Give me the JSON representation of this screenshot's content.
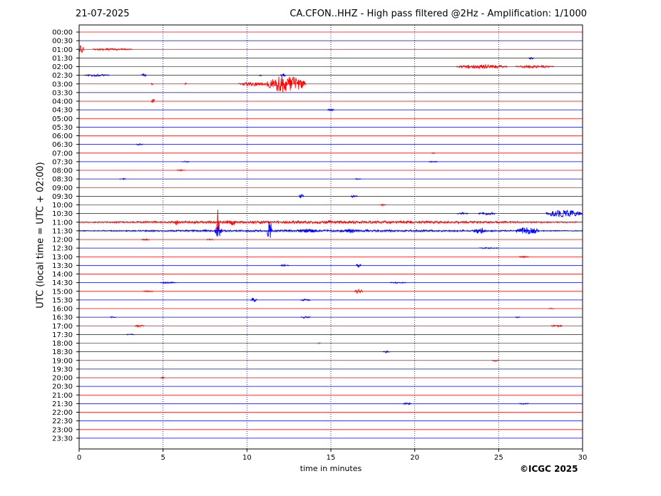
{
  "header": {
    "date": "21-07-2025",
    "title": "CA.CFON..HHZ - High pass filtered @2Hz - Amplification: 1/1000"
  },
  "footer": {
    "copyright": "©ICGC 2025"
  },
  "colors": {
    "trace_a": "#ff0000",
    "trace_b": "#0000ff",
    "vgrid": "#000080",
    "axis": "#000000"
  },
  "chart_data": {
    "type": "line",
    "xlabel": "time in minutes",
    "ylabel": "UTC (local time = UTC + 02:00)",
    "xlim": [
      0,
      30
    ],
    "xticks": [
      0,
      5,
      10,
      15,
      20,
      25,
      30
    ],
    "vertical_grid": "dotted, every 5 minutes",
    "row_colors_alternate": [
      "red",
      "blue"
    ],
    "row_labels": [
      "00:00",
      "00:30",
      "01:00",
      "01:30",
      "02:00",
      "02:30",
      "03:00",
      "03:30",
      "04:00",
      "04:30",
      "05:00",
      "05:30",
      "06:00",
      "06:30",
      "07:00",
      "07:30",
      "08:00",
      "08:30",
      "09:00",
      "09:30",
      "10:00",
      "10:30",
      "11:00",
      "11:30",
      "12:00",
      "12:30",
      "13:00",
      "13:30",
      "14:00",
      "14:30",
      "15:00",
      "15:30",
      "16:00",
      "16:30",
      "17:00",
      "17:30",
      "18:00",
      "18:30",
      "19:00",
      "19:30",
      "20:00",
      "20:30",
      "21:00",
      "21:30",
      "22:00",
      "22:30",
      "23:00",
      "23:30"
    ],
    "events": [
      {
        "row": "01:00",
        "start": 0.0,
        "end": 0.3,
        "amplitude": 6
      },
      {
        "row": "01:00",
        "start": 0.8,
        "end": 3.2,
        "amplitude": 1.5
      },
      {
        "row": "01:30",
        "start": 26.8,
        "end": 27.1,
        "amplitude": 2
      },
      {
        "row": "02:00",
        "start": 22.5,
        "end": 25.5,
        "amplitude": 3
      },
      {
        "row": "02:00",
        "start": 26.0,
        "end": 28.3,
        "amplitude": 2
      },
      {
        "row": "02:30",
        "start": 0.3,
        "end": 1.8,
        "amplitude": 1.5
      },
      {
        "row": "02:30",
        "start": 3.7,
        "end": 4.0,
        "amplitude": 2
      },
      {
        "row": "02:30",
        "start": 10.7,
        "end": 10.9,
        "amplitude": 1
      },
      {
        "row": "02:30",
        "start": 12.0,
        "end": 12.3,
        "amplitude": 3
      },
      {
        "row": "03:00",
        "start": 9.5,
        "end": 11.2,
        "amplitude": 3
      },
      {
        "row": "03:00",
        "start": 11.2,
        "end": 13.5,
        "amplitude": 12
      },
      {
        "row": "03:00",
        "start": 6.3,
        "end": 6.4,
        "amplitude": 2
      },
      {
        "row": "03:00",
        "start": 4.3,
        "end": 4.4,
        "amplitude": 2
      },
      {
        "row": "04:00",
        "start": 4.3,
        "end": 4.5,
        "amplitude": 4
      },
      {
        "row": "04:30",
        "start": 14.8,
        "end": 15.2,
        "amplitude": 1.5
      },
      {
        "row": "06:30",
        "start": 3.4,
        "end": 3.8,
        "amplitude": 1.5
      },
      {
        "row": "07:00",
        "start": 21.0,
        "end": 21.2,
        "amplitude": 1
      },
      {
        "row": "07:30",
        "start": 6.1,
        "end": 6.6,
        "amplitude": 1
      },
      {
        "row": "07:30",
        "start": 20.8,
        "end": 21.4,
        "amplitude": 1
      },
      {
        "row": "08:00",
        "start": 5.8,
        "end": 6.3,
        "amplitude": 1
      },
      {
        "row": "08:30",
        "start": 2.4,
        "end": 2.8,
        "amplitude": 1
      },
      {
        "row": "08:30",
        "start": 16.4,
        "end": 16.8,
        "amplitude": 1
      },
      {
        "row": "09:30",
        "start": 13.1,
        "end": 13.4,
        "amplitude": 3
      },
      {
        "row": "09:30",
        "start": 16.2,
        "end": 16.6,
        "amplitude": 2
      },
      {
        "row": "10:00",
        "start": 17.9,
        "end": 18.3,
        "amplitude": 1
      },
      {
        "row": "10:30",
        "start": 22.5,
        "end": 23.2,
        "amplitude": 1.5
      },
      {
        "row": "10:30",
        "start": 23.8,
        "end": 24.8,
        "amplitude": 2
      },
      {
        "row": "10:30",
        "start": 27.8,
        "end": 30.0,
        "amplitude": 5
      },
      {
        "row": "11:00",
        "start": 0.0,
        "end": 30.0,
        "amplitude": 2
      },
      {
        "row": "11:00",
        "start": 8.2,
        "end": 8.35,
        "amplitude": 20
      },
      {
        "row": "11:00",
        "start": 8.8,
        "end": 9.3,
        "amplitude": 6
      },
      {
        "row": "11:00",
        "start": 5.7,
        "end": 5.9,
        "amplitude": 5
      },
      {
        "row": "11:00",
        "start": 14.8,
        "end": 15.0,
        "amplitude": 3
      },
      {
        "row": "11:30",
        "start": 0.0,
        "end": 30.0,
        "amplitude": 1.5
      },
      {
        "row": "11:30",
        "start": 8.1,
        "end": 8.5,
        "amplitude": 12
      },
      {
        "row": "11:30",
        "start": 11.2,
        "end": 11.5,
        "amplitude": 14
      },
      {
        "row": "11:30",
        "start": 13.0,
        "end": 14.2,
        "amplitude": 3
      },
      {
        "row": "11:30",
        "start": 15.8,
        "end": 16.5,
        "amplitude": 3
      },
      {
        "row": "11:30",
        "start": 23.5,
        "end": 24.3,
        "amplitude": 4
      },
      {
        "row": "11:30",
        "start": 26.0,
        "end": 27.4,
        "amplitude": 5
      },
      {
        "row": "12:00",
        "start": 3.7,
        "end": 4.2,
        "amplitude": 1
      },
      {
        "row": "12:00",
        "start": 7.6,
        "end": 8.0,
        "amplitude": 1
      },
      {
        "row": "12:30",
        "start": 23.8,
        "end": 25.0,
        "amplitude": 1
      },
      {
        "row": "13:00",
        "start": 26.2,
        "end": 26.8,
        "amplitude": 1
      },
      {
        "row": "13:30",
        "start": 12.0,
        "end": 12.5,
        "amplitude": 1.5
      },
      {
        "row": "13:30",
        "start": 16.5,
        "end": 16.8,
        "amplitude": 3
      },
      {
        "row": "14:30",
        "start": 4.8,
        "end": 5.8,
        "amplitude": 1
      },
      {
        "row": "14:30",
        "start": 18.5,
        "end": 19.5,
        "amplitude": 1
      },
      {
        "row": "15:00",
        "start": 3.8,
        "end": 4.4,
        "amplitude": 1
      },
      {
        "row": "15:00",
        "start": 16.4,
        "end": 16.9,
        "amplitude": 3
      },
      {
        "row": "15:30",
        "start": 10.2,
        "end": 10.6,
        "amplitude": 3
      },
      {
        "row": "15:30",
        "start": 13.2,
        "end": 13.8,
        "amplitude": 1.5
      },
      {
        "row": "16:00",
        "start": 28.0,
        "end": 28.3,
        "amplitude": 1
      },
      {
        "row": "16:30",
        "start": 1.8,
        "end": 2.2,
        "amplitude": 1
      },
      {
        "row": "16:30",
        "start": 13.2,
        "end": 13.8,
        "amplitude": 1.5
      },
      {
        "row": "16:30",
        "start": 26.0,
        "end": 26.3,
        "amplitude": 1
      },
      {
        "row": "17:00",
        "start": 3.3,
        "end": 3.9,
        "amplitude": 1.5
      },
      {
        "row": "17:00",
        "start": 28.1,
        "end": 28.8,
        "amplitude": 1.5
      },
      {
        "row": "17:30",
        "start": 2.8,
        "end": 3.3,
        "amplitude": 1
      },
      {
        "row": "18:00",
        "start": 14.2,
        "end": 14.4,
        "amplitude": 1
      },
      {
        "row": "18:30",
        "start": 18.1,
        "end": 18.5,
        "amplitude": 1.5
      },
      {
        "row": "19:00",
        "start": 24.6,
        "end": 25.0,
        "amplitude": 1.5
      },
      {
        "row": "20:00",
        "start": 4.8,
        "end": 5.1,
        "amplitude": 1
      },
      {
        "row": "21:30",
        "start": 19.3,
        "end": 19.8,
        "amplitude": 1.5
      },
      {
        "row": "21:30",
        "start": 26.2,
        "end": 26.8,
        "amplitude": 1
      }
    ]
  }
}
